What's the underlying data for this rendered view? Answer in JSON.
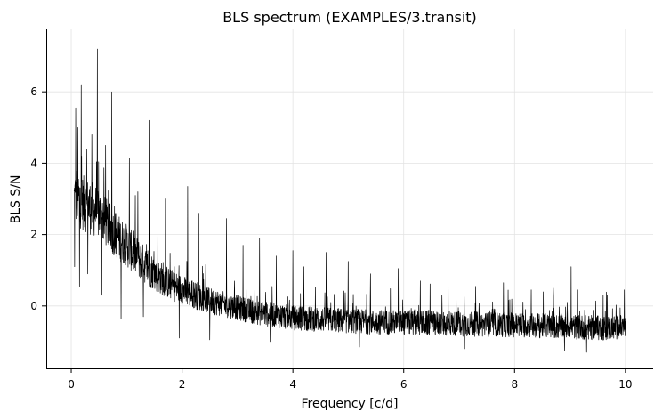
{
  "chart_data": {
    "type": "line",
    "title": "BLS spectrum (EXAMPLES/3.transit)",
    "xlabel": "Frequency [c/d]",
    "ylabel": "BLS S/N",
    "xlim": [
      -0.45,
      10.5
    ],
    "ylim": [
      -1.75,
      7.75
    ],
    "xticks": [
      0,
      2,
      4,
      6,
      8,
      10
    ],
    "yticks": [
      0,
      2,
      4,
      6
    ],
    "xtick_labels": [
      "0",
      "2",
      "4",
      "6",
      "8",
      "10"
    ],
    "ytick_labels": [
      "0",
      "2",
      "4",
      "6"
    ],
    "grid": true,
    "legend": "none",
    "line_color": "#000000",
    "series": [
      {
        "x": [
          0.05,
          0.1,
          0.15,
          0.2,
          0.3,
          0.4,
          0.5,
          0.6,
          0.7,
          0.8,
          1.0,
          1.2,
          1.4,
          1.6,
          1.8,
          2.0,
          2.25,
          2.5,
          2.75,
          3.0,
          3.25,
          3.5,
          3.75,
          4.0,
          4.5,
          5.0,
          5.5,
          6.0,
          6.5,
          7.0,
          7.5,
          8.0,
          8.5,
          9.0,
          9.5,
          10.0
        ],
        "values": [
          3.0,
          3.1,
          3.0,
          2.9,
          2.8,
          2.7,
          2.6,
          2.4,
          2.2,
          2.0,
          1.7,
          1.35,
          1.05,
          0.8,
          0.6,
          0.45,
          0.3,
          0.15,
          0.05,
          -0.05,
          -0.15,
          -0.22,
          -0.28,
          -0.33,
          -0.38,
          -0.42,
          -0.45,
          -0.47,
          -0.49,
          -0.5,
          -0.52,
          -0.53,
          -0.56,
          -0.58,
          -0.62,
          -0.6
        ]
      }
    ],
    "peaks": {
      "x": [
        0.08,
        0.12,
        0.18,
        0.28,
        0.37,
        0.47,
        0.62,
        0.73,
        0.9,
        1.05,
        1.2,
        1.42,
        1.55,
        1.7,
        1.95,
        2.1,
        2.3,
        2.5,
        2.8,
        3.1,
        3.4,
        3.7,
        4.0,
        4.2,
        4.6,
        5.0,
        5.4,
        5.9,
        6.3,
        6.8,
        7.3,
        7.8,
        8.3,
        8.7,
        9.02,
        9.6,
        9.98
      ],
      "values": [
        5.55,
        5.0,
        6.2,
        4.4,
        4.8,
        7.2,
        4.5,
        6.0,
        4.1,
        4.15,
        3.2,
        5.2,
        2.5,
        3.0,
        2.4,
        3.35,
        2.6,
        2.1,
        2.45,
        1.7,
        1.9,
        1.4,
        1.55,
        1.1,
        1.5,
        1.25,
        0.9,
        1.05,
        0.7,
        0.85,
        0.55,
        0.65,
        0.45,
        0.5,
        1.1,
        0.3,
        0.45
      ]
    },
    "dips": {
      "x": [
        0.06,
        0.15,
        0.3,
        0.55,
        0.9,
        1.3,
        1.95,
        2.5,
        3.6,
        5.2,
        7.1,
        8.9,
        9.3
      ],
      "values": [
        1.1,
        0.55,
        0.9,
        0.3,
        -0.35,
        -0.3,
        -0.9,
        -0.95,
        -1.0,
        -1.15,
        -1.2,
        -1.25,
        -1.3
      ]
    }
  }
}
